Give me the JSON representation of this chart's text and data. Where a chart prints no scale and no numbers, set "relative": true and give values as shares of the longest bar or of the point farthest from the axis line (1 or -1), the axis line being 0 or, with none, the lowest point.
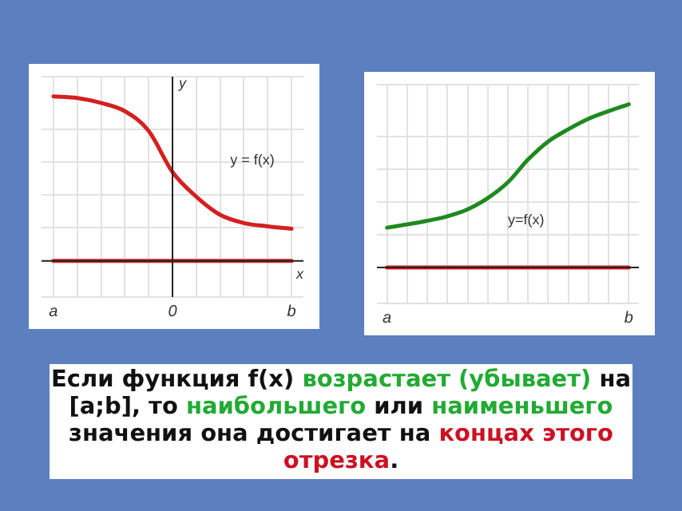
{
  "chart_data": [
    {
      "type": "line",
      "relative": true,
      "xlabel": "x",
      "ylabel": "y",
      "grid": true,
      "marker": "none",
      "line_style": "solid",
      "categories": [
        "a",
        null,
        null,
        null,
        null,
        "0",
        null,
        null,
        null,
        null,
        "b"
      ],
      "series": [
        {
          "color": "#d42020",
          "values": [
            1.0,
            0.99,
            0.96,
            0.91,
            0.79,
            0.54,
            0.39,
            0.28,
            0.23,
            0.21,
            0.195
          ]
        },
        {
          "color": "#d42020",
          "values": [
            0,
            0,
            0,
            0,
            0,
            0,
            0,
            0,
            0,
            0,
            0
          ]
        }
      ],
      "ref_lines": [
        {
          "axis": "x",
          "value": "0",
          "color": "#222222"
        }
      ],
      "annotations": [
        "y = f(x)"
      ]
    },
    {
      "type": "line",
      "relative": true,
      "grid": true,
      "marker": "none",
      "line_style": "solid",
      "categories": [
        "a",
        null,
        null,
        null,
        null,
        null,
        null,
        null,
        null,
        null,
        null,
        null,
        "b"
      ],
      "series": [
        {
          "color": "#1e8a1e",
          "values": [
            0.244,
            0.264,
            0.286,
            0.314,
            0.356,
            0.425,
            0.522,
            0.661,
            0.772,
            0.847,
            0.911,
            0.958,
            1.0
          ]
        },
        {
          "color": "#d42020",
          "values": [
            0,
            0,
            0,
            0,
            0,
            0,
            0,
            0,
            0,
            0,
            0,
            0,
            0
          ]
        }
      ],
      "annotations": [
        "y=f(x)"
      ]
    },
    {
      "type": "other",
      "annotations": [
        "Если функция f(x) ",
        "возрастает (убывает)",
        " на [a;b], то ",
        "наибольшего",
        " или ",
        "наименьшего",
        " значения она достигает на ",
        "концах этого отрезка",
        "."
      ],
      "colors": [
        "#111111",
        "#22aa33",
        "#111111",
        "#22aa33",
        "#111111",
        "#22aa33",
        "#111111",
        "#cc1122",
        "#111111"
      ]
    }
  ]
}
